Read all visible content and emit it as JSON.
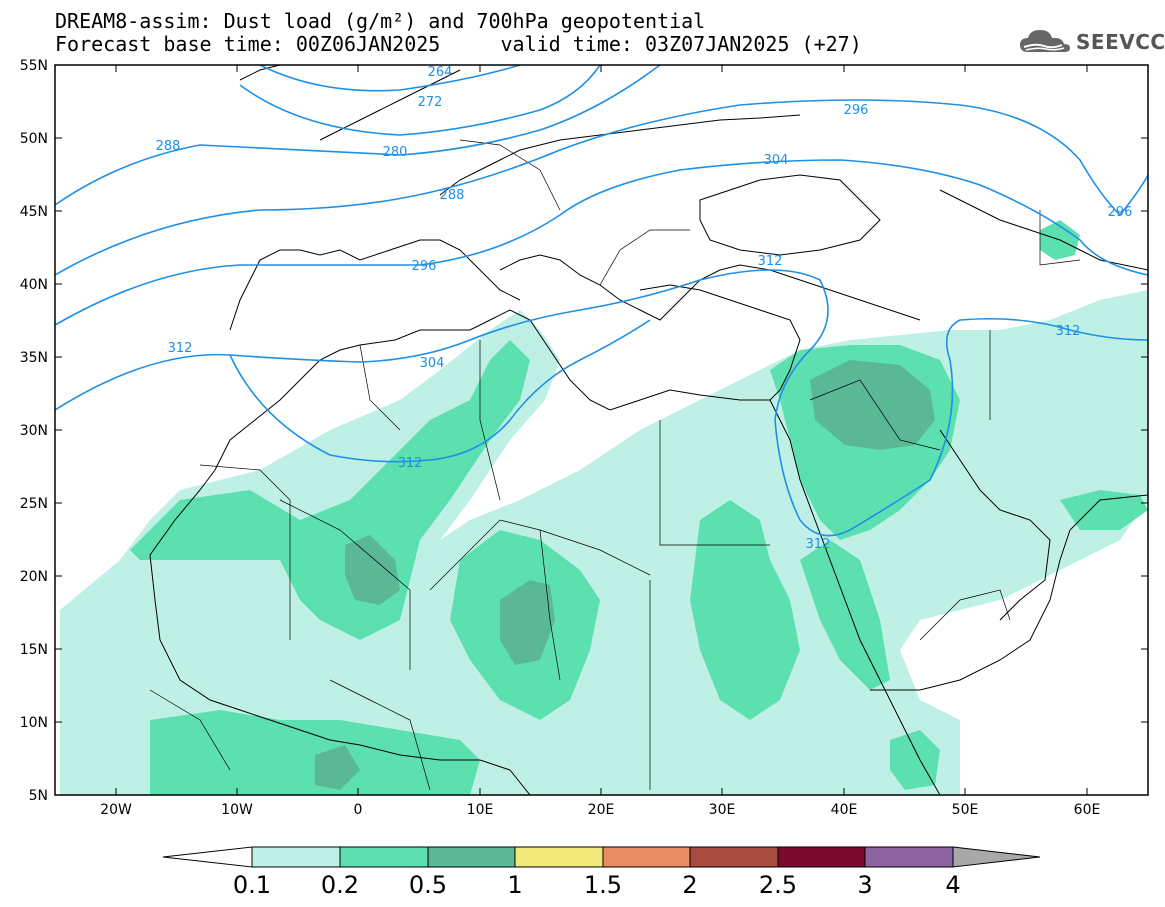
{
  "title_line1": "DREAM8-assim: Dust load (g/m²) and 700hPa geopotential",
  "title_line2": "Forecast base time: 00Z06JAN2025     valid time: 03Z07JAN2025 (+27)",
  "logo_text": "SEEVCCC",
  "map": {
    "lon_range": [
      -25,
      65
    ],
    "lat_range": [
      5,
      55
    ],
    "lat_ticks": [
      "55N",
      "50N",
      "45N",
      "40N",
      "35N",
      "30N",
      "25N",
      "20N",
      "15N",
      "10N",
      "5N"
    ],
    "lon_ticks": [
      "20W",
      "10W",
      "0",
      "10E",
      "20E",
      "30E",
      "40E",
      "50E",
      "60E"
    ],
    "contour_color": "#1e90e6",
    "contour_labels": [
      "264",
      "272",
      "280",
      "288",
      "288",
      "296",
      "296",
      "296",
      "304",
      "304",
      "312",
      "312",
      "312",
      "312",
      "312"
    ]
  },
  "colorbar": {
    "labels": [
      "0.1",
      "0.2",
      "0.5",
      "1",
      "1.5",
      "2",
      "2.5",
      "3",
      "4"
    ],
    "colors": [
      "#ffffff",
      "#bff0e6",
      "#5ce0b0",
      "#5ab896",
      "#f0e878",
      "#e88c64",
      "#a84c40",
      "#7c0a2c",
      "#8c64a0",
      "#a8a8a8"
    ]
  }
}
